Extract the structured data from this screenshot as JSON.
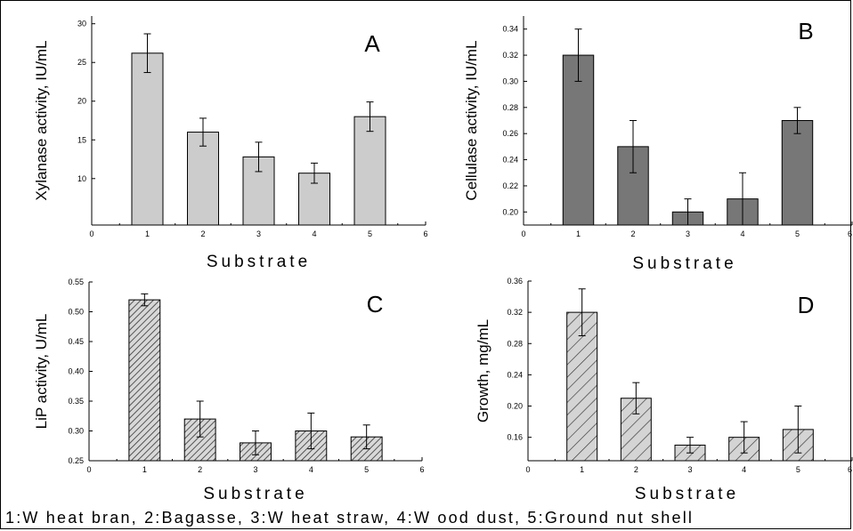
{
  "caption": "1:W heat bran, 2:Bagasse, 3:W heat straw, 4:W ood dust, 5:Ground nut shell",
  "chart_data": [
    {
      "type": "bar",
      "letter": "A",
      "xlabel": "Substrate",
      "ylabel": "Xylanase activity, IU/mL",
      "x": [
        1,
        2,
        3,
        4,
        5
      ],
      "values": [
        26.2,
        16.0,
        12.8,
        10.7,
        18.0
      ],
      "errors": [
        2.5,
        1.8,
        1.9,
        1.3,
        1.9
      ],
      "xlim": [
        0,
        6
      ],
      "xticks": [
        "0",
        "1",
        "2",
        "3",
        "4",
        "5",
        "6"
      ],
      "ylim": [
        4,
        31
      ],
      "yticks": [
        10,
        15,
        20,
        25,
        30
      ],
      "ytick_labels": [
        "10",
        "15",
        "20",
        "25",
        "30"
      ],
      "fill": "#cccccc",
      "pattern": "none"
    },
    {
      "type": "bar",
      "letter": "B",
      "xlabel": "Substrate",
      "ylabel": "Cellulase activity, IU/mL",
      "x": [
        1,
        2,
        3,
        4,
        5
      ],
      "values": [
        0.32,
        0.25,
        0.2,
        0.21,
        0.27
      ],
      "errors": [
        0.02,
        0.02,
        0.01,
        0.02,
        0.01
      ],
      "xlim": [
        0,
        6
      ],
      "xticks": [
        "0",
        "1",
        "2",
        "3",
        "4",
        "5",
        "6"
      ],
      "ylim": [
        0.19,
        0.35
      ],
      "yticks": [
        0.2,
        0.22,
        0.24,
        0.26,
        0.28,
        0.3,
        0.32,
        0.34
      ],
      "ytick_labels": [
        "0.20",
        "0.22",
        "0.24",
        "0.26",
        "0.28",
        "0.30",
        "0.32",
        "0.34"
      ],
      "fill": "#777777",
      "pattern": "none"
    },
    {
      "type": "bar",
      "letter": "C",
      "xlabel": "Substrate",
      "ylabel": "LiP activity, U/mL",
      "x": [
        1,
        2,
        3,
        4,
        5
      ],
      "values": [
        0.52,
        0.32,
        0.28,
        0.3,
        0.29
      ],
      "errors": [
        0.01,
        0.03,
        0.02,
        0.03,
        0.02
      ],
      "xlim": [
        0,
        6
      ],
      "xticks": [
        "0",
        "1",
        "2",
        "3",
        "4",
        "5",
        "6"
      ],
      "ylim": [
        0.25,
        0.55
      ],
      "yticks": [
        0.25,
        0.3,
        0.35,
        0.4,
        0.45,
        0.5,
        0.55
      ],
      "ytick_labels": [
        "0.25",
        "0.30",
        "0.35",
        "0.40",
        "0.45",
        "0.50",
        "0.55"
      ],
      "fill": "#9a9a9a",
      "pattern": "dense-hatch"
    },
    {
      "type": "bar",
      "letter": "D",
      "xlabel": "Substrate",
      "ylabel": "Growth, mg/mL",
      "x": [
        1,
        2,
        3,
        4,
        5
      ],
      "values": [
        0.32,
        0.21,
        0.15,
        0.16,
        0.17
      ],
      "errors": [
        0.03,
        0.02,
        0.01,
        0.02,
        0.03
      ],
      "xlim": [
        0,
        6
      ],
      "xticks": [
        "0",
        "1",
        "2",
        "3",
        "4",
        "5",
        "6"
      ],
      "ylim": [
        0.13,
        0.36
      ],
      "yticks": [
        0.16,
        0.2,
        0.24,
        0.28,
        0.32,
        0.36
      ],
      "ytick_labels": [
        "0.16",
        "0.20",
        "0.24",
        "0.28",
        "0.32",
        "0.36"
      ],
      "fill": "#cfcfcf",
      "pattern": "wide-hatch"
    }
  ]
}
